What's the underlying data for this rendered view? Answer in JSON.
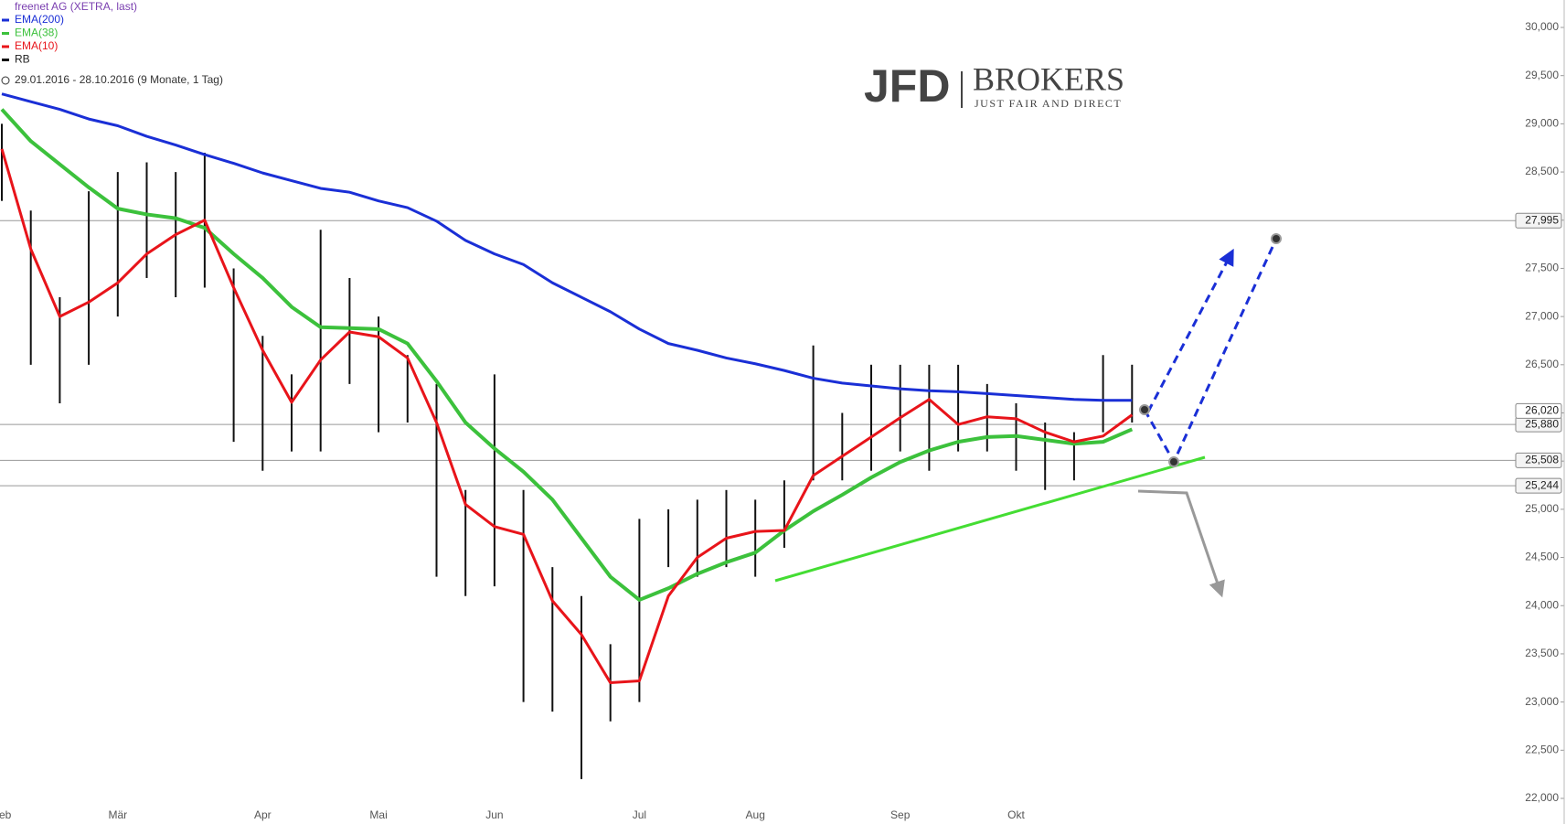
{
  "chart_data": {
    "type": "line",
    "title": "freenet AG (XETRA, last)",
    "period": "29.01.2016 - 28.10.2016 (9 Monate, 1 Tag)",
    "logo": {
      "mark": "JFD",
      "name": "BROKERS",
      "tagline": "JUST FAIR AND DIRECT"
    },
    "categories": [
      "Feb",
      null,
      null,
      null,
      "Mär",
      null,
      null,
      null,
      null,
      "Apr",
      null,
      null,
      null,
      "Mai",
      null,
      null,
      null,
      "Jun",
      null,
      null,
      null,
      null,
      "Jul",
      null,
      null,
      null,
      "Aug",
      null,
      null,
      null,
      null,
      "Sep",
      null,
      null,
      null,
      "Okt",
      null,
      null,
      null,
      null
    ],
    "series": [
      {
        "name": "EMA(200)",
        "color": "#1a2fd6",
        "width": 3,
        "values": [
          29310,
          29230,
          29150,
          29050,
          28980,
          28870,
          28780,
          28680,
          28590,
          28490,
          28410,
          28330,
          28290,
          28200,
          28130,
          27990,
          27790,
          27650,
          27540,
          27350,
          27200,
          27050,
          26870,
          26720,
          26650,
          26570,
          26510,
          26440,
          26360,
          26310,
          26280,
          26250,
          26230,
          26220,
          26200,
          26180,
          26160,
          26140,
          26130,
          26130
        ]
      },
      {
        "name": "EMA(38)",
        "color": "#3cc13c",
        "width": 4,
        "values": [
          29150,
          28820,
          28580,
          28340,
          28120,
          28060,
          28020,
          27920,
          27650,
          27400,
          27100,
          26890,
          26880,
          26870,
          26720,
          26330,
          25900,
          25630,
          25390,
          25100,
          24700,
          24300,
          24060,
          24180,
          24330,
          24450,
          24550,
          24780,
          24980,
          25150,
          25330,
          25490,
          25610,
          25700,
          25750,
          25760,
          25720,
          25680,
          25700,
          25830
        ]
      },
      {
        "name": "EMA(10)",
        "color": "#e8141a",
        "width": 3,
        "values": [
          28740,
          27700,
          27000,
          27150,
          27350,
          27650,
          27850,
          28000,
          27300,
          26650,
          26110,
          26550,
          26840,
          26790,
          26570,
          25900,
          25050,
          24820,
          24740,
          24050,
          23700,
          23200,
          23220,
          24100,
          24500,
          24700,
          24770,
          24780,
          25350,
          25550,
          25750,
          25950,
          26140,
          25880,
          25960,
          25940,
          25800,
          25700,
          25760,
          25980
        ]
      }
    ],
    "bars": {
      "name": "RB",
      "color": "#111111",
      "high": [
        29000,
        28100,
        27200,
        28300,
        28500,
        28600,
        28500,
        28700,
        27500,
        26800,
        26400,
        27900,
        27400,
        27000,
        26600,
        26300,
        25200,
        26400,
        25200,
        24400,
        24100,
        23600,
        24900,
        25000,
        25100,
        25200,
        25100,
        25300,
        26700,
        26000,
        26500,
        26500,
        26500,
        26500,
        26300,
        26100,
        25900,
        25800,
        26600,
        26500
      ],
      "low": [
        28200,
        26500,
        26100,
        26500,
        27000,
        27400,
        27200,
        27300,
        25700,
        25400,
        25600,
        25600,
        26300,
        25800,
        25900,
        24300,
        24100,
        24200,
        23000,
        22900,
        22200,
        22800,
        23000,
        24400,
        24300,
        24400,
        24300,
        24600,
        25300,
        25300,
        25400,
        25600,
        25400,
        25600,
        25600,
        25400,
        25200,
        25300,
        25800,
        25900
      ]
    },
    "levels": [
      {
        "value": 27995,
        "label": "27,995"
      },
      {
        "value": 25880,
        "label": "25,880"
      },
      {
        "value": 25508,
        "label": "25,508"
      },
      {
        "value": 25244,
        "label": "25,244"
      }
    ],
    "last_price": {
      "value": 26020,
      "label": "26,020"
    },
    "ylim": [
      22000,
      30000
    ],
    "yticks": [
      {
        "value": 22000,
        "label": "22,000"
      },
      {
        "value": 22500,
        "label": "22,500"
      },
      {
        "value": 23000,
        "label": "23,000"
      },
      {
        "value": 23500,
        "label": "23,500"
      },
      {
        "value": 24000,
        "label": "24,000"
      },
      {
        "value": 24500,
        "label": "24,500"
      },
      {
        "value": 25000,
        "label": "25,000"
      },
      {
        "value": 25500,
        "label": "25,500"
      },
      {
        "value": 26000,
        "label": "26,000"
      },
      {
        "value": 26500,
        "label": "26,500"
      },
      {
        "value": 27000,
        "label": "27,000"
      },
      {
        "value": 27500,
        "label": "27,500"
      },
      {
        "value": 28000,
        "label": "28,000"
      },
      {
        "value": 28500,
        "label": "28,500"
      },
      {
        "value": 29000,
        "label": "29,000"
      },
      {
        "value": 29500,
        "label": "29,500"
      },
      {
        "value": 30000,
        "label": "30,000"
      }
    ]
  }
}
